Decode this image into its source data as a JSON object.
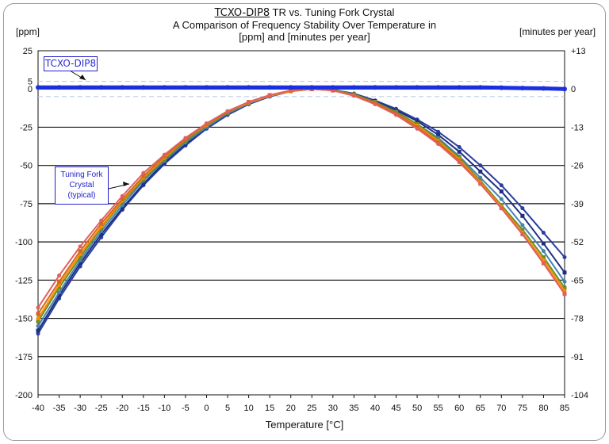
{
  "title": {
    "prefix": "TCXO-DIP8",
    "suffix": " TR vs. Tuning Fork Crystal",
    "line2": "A Comparison of Frequency Stability Over Temperature in",
    "line3": "[ppm] and [minutes per year]"
  },
  "left_unit": "[ppm]",
  "right_unit": "[minutes per year]",
  "xlabel": "Temperature [°C]",
  "annotations": {
    "tcxo": "TCXO-DIP8",
    "tuning": [
      "Tuning Fork",
      "Crystal",
      "(typical)"
    ]
  },
  "colors": {
    "tcxo": "#1a2fe0",
    "crystal_series": [
      "#2a3ea0",
      "#1f2f80",
      "#4682b4",
      "#6b8e23",
      "#ff8c00",
      "#d2691e",
      "#e06060",
      "#20b2aa",
      "#9acd32",
      "#ffd700",
      "#7fb3d5",
      "#ff6347"
    ],
    "grid_major": "#111111",
    "grid_minor": "#b7c7e6"
  },
  "chart_data": {
    "type": "line",
    "x": [
      -40,
      -35,
      -30,
      -25,
      -20,
      -15,
      -10,
      -5,
      0,
      5,
      10,
      15,
      20,
      25,
      30,
      35,
      40,
      45,
      50,
      55,
      60,
      65,
      70,
      75,
      80,
      85
    ],
    "xlim": [
      -40,
      85
    ],
    "ylim": [
      -200,
      25
    ],
    "y_ticks": [
      "25",
      "5",
      "0",
      "-25",
      "-50",
      "-75",
      "-100",
      "-125",
      "-150",
      "-175",
      "-200"
    ],
    "y2_ticks": [
      "+13",
      "0",
      "-13",
      "-26",
      "-39",
      "-52",
      "-65",
      "-78",
      "-91",
      "-104"
    ],
    "x_ticks": [
      "-40",
      "-35",
      "-30",
      "-25",
      "-20",
      "-15",
      "-10",
      "-5",
      "0",
      "5",
      "10",
      "15",
      "20",
      "25",
      "30",
      "35",
      "40",
      "45",
      "50",
      "55",
      "60",
      "65",
      "70",
      "75",
      "80",
      "85"
    ],
    "series": [
      {
        "values": [
          1,
          1,
          1,
          1,
          1,
          1,
          1,
          1,
          1,
          1,
          1,
          1,
          1,
          1,
          1,
          1,
          1,
          1,
          1,
          1,
          1,
          1,
          0.8,
          0.6,
          0.4,
          0
        ]
      },
      {
        "values": [
          -160,
          -137,
          -116,
          -97,
          -79,
          -63,
          -49,
          -37,
          -26,
          -17,
          -10,
          -5,
          -1.5,
          0,
          -0.5,
          -3,
          -7.5,
          -13,
          -20,
          -28,
          -38,
          -50,
          -63,
          -78,
          -94,
          -110
        ]
      },
      {
        "values": [
          -158,
          -135,
          -114,
          -95,
          -78,
          -62,
          -48,
          -36,
          -25,
          -16,
          -9.5,
          -4.5,
          -1,
          0,
          -0.5,
          -3.5,
          -8,
          -14,
          -21,
          -30,
          -41,
          -54,
          -67,
          -83,
          -101,
          -120
        ]
      },
      {
        "values": [
          -155,
          -133,
          -112,
          -93,
          -76,
          -60,
          -47,
          -35,
          -25,
          -16,
          -9.5,
          -4.5,
          -1.5,
          0,
          -0.5,
          -3.5,
          -8.5,
          -15,
          -23,
          -32,
          -44,
          -58,
          -72,
          -89,
          -106,
          -126
        ]
      },
      {
        "values": [
          -152,
          -130,
          -110,
          -91,
          -74,
          -59,
          -46,
          -34,
          -24,
          -15.5,
          -9,
          -4.5,
          -1.5,
          0,
          -0.5,
          -3.5,
          -8.5,
          -15,
          -23,
          -33,
          -45,
          -60,
          -76,
          -92,
          -110,
          -130
        ]
      },
      {
        "values": [
          -150,
          -128,
          -108,
          -90,
          -73,
          -58,
          -45,
          -33,
          -23.5,
          -15,
          -9,
          -4.5,
          -1.5,
          0,
          -1,
          -4,
          -9,
          -16,
          -24,
          -34,
          -46,
          -61,
          -77,
          -94,
          -112,
          -132
        ]
      },
      {
        "values": [
          -147,
          -126,
          -106,
          -88,
          -72,
          -57,
          -44,
          -33,
          -23,
          -15,
          -8.5,
          -4,
          -1,
          0,
          -1,
          -4,
          -9,
          -16,
          -25,
          -35,
          -47,
          -62,
          -78,
          -95,
          -114,
          -134
        ]
      },
      {
        "values": [
          -143,
          -122,
          -103,
          -86,
          -70,
          -55,
          -43,
          -32,
          -22.5,
          -14.5,
          -8.5,
          -4,
          -1,
          0,
          -1,
          -4.5,
          -10,
          -17,
          -26,
          -36,
          -48,
          -62,
          -78,
          -95,
          -114,
          -134
        ]
      }
    ]
  }
}
